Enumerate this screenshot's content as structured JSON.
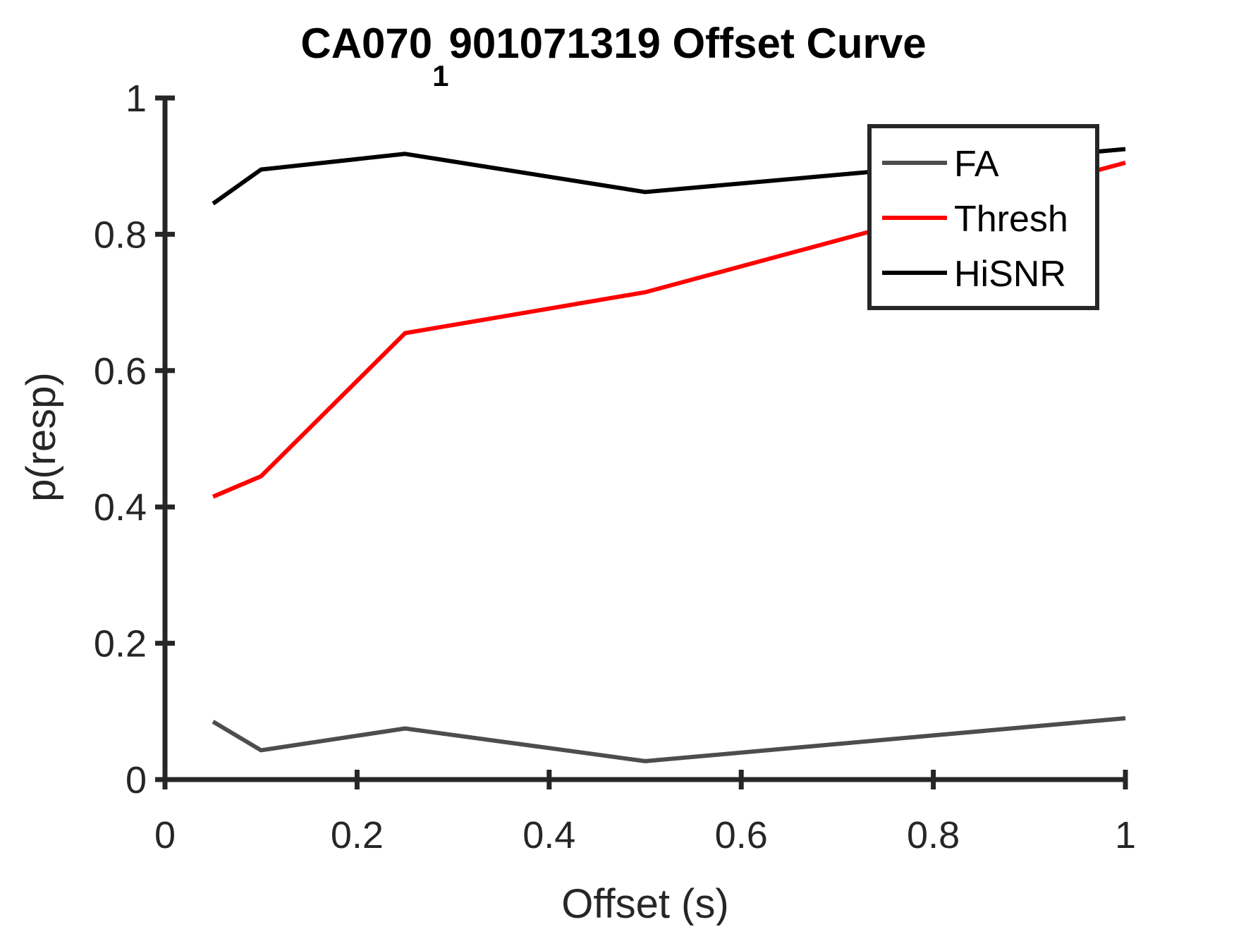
{
  "chart_data": {
    "type": "line",
    "title": {
      "prefix": "CA070",
      "subscript": "1",
      "suffix": "901071319 Offset Curve"
    },
    "xlabel": "Offset (s)",
    "ylabel": "p(resp)",
    "xlim": [
      0,
      1
    ],
    "ylim": [
      0,
      1
    ],
    "xticks": [
      0,
      0.2,
      0.4,
      0.6,
      0.8,
      1
    ],
    "xtick_labels": [
      "0",
      "0.2",
      "0.4",
      "0.6",
      "0.8",
      "1"
    ],
    "yticks": [
      0,
      0.2,
      0.4,
      0.6,
      0.8,
      1
    ],
    "ytick_labels": [
      "0",
      "0.2",
      "0.4",
      "0.6",
      "0.8",
      "1"
    ],
    "grid": false,
    "legend_position": "top-right",
    "x": [
      0.05,
      0.1,
      0.25,
      0.5,
      1.0
    ],
    "series": [
      {
        "name": "FA",
        "color": "#4d4d4f",
        "values": [
          0.085,
          0.043,
          0.075,
          0.027,
          0.09
        ]
      },
      {
        "name": "Thresh",
        "color": "#ff0000",
        "values": [
          0.415,
          0.445,
          0.655,
          0.715,
          0.905
        ]
      },
      {
        "name": "HiSNR",
        "color": "#000000",
        "values": [
          0.845,
          0.895,
          0.918,
          0.862,
          0.925
        ]
      }
    ]
  }
}
